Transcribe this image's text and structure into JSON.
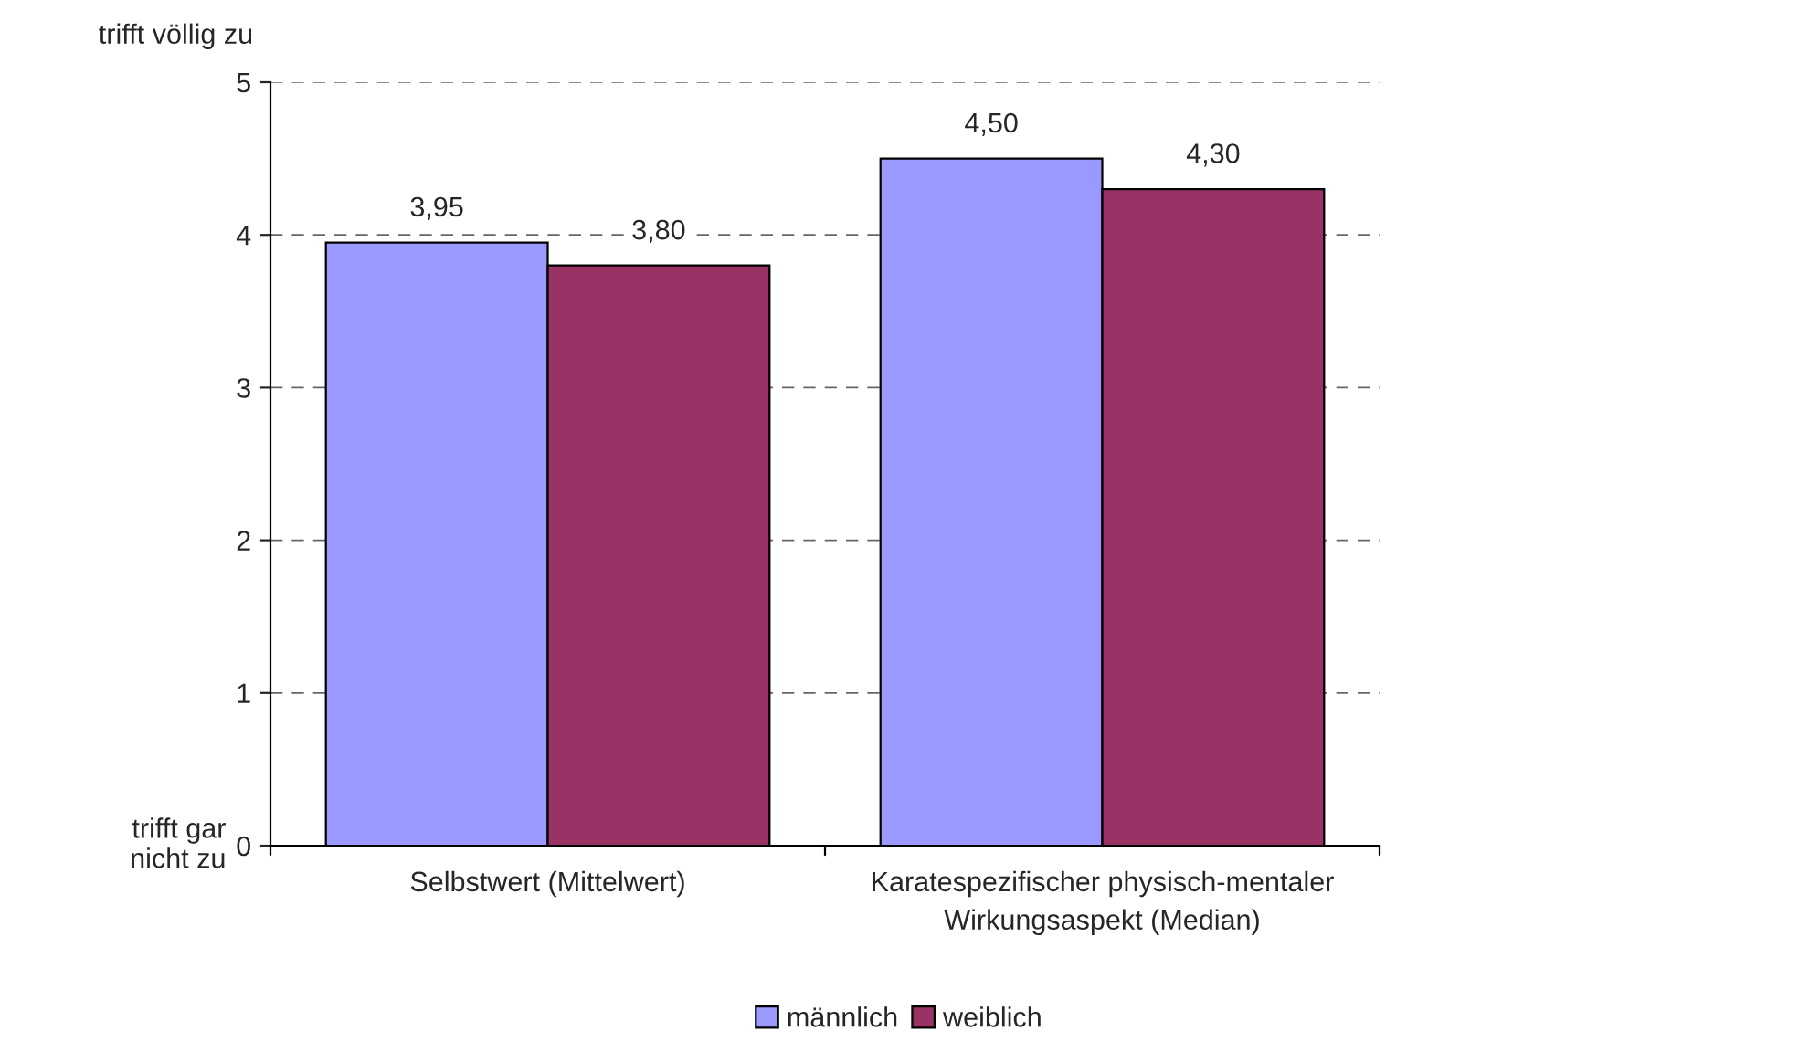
{
  "chart_data": {
    "type": "bar",
    "categories": [
      "Selbstwert (Mittelwert)",
      "Karatespezifischer physisch-mentaler\nWirkungsaspekt (Median)"
    ],
    "series": [
      {
        "name": "männlich",
        "color": "#9999ff",
        "values": [
          3.95,
          4.5
        ],
        "value_labels": [
          "3,95",
          "4,50"
        ]
      },
      {
        "name": "weiblich",
        "color": "#993366",
        "values": [
          3.8,
          4.3
        ],
        "value_labels": [
          "3,80",
          "4,30"
        ]
      }
    ],
    "ylim": [
      0,
      5
    ],
    "yticks": [
      0,
      1,
      2,
      3,
      4,
      5
    ],
    "grid": "y",
    "legend": "bottom",
    "annotations": [
      "trifft völlig zu",
      "trifft gar\nnicht zu"
    ]
  }
}
